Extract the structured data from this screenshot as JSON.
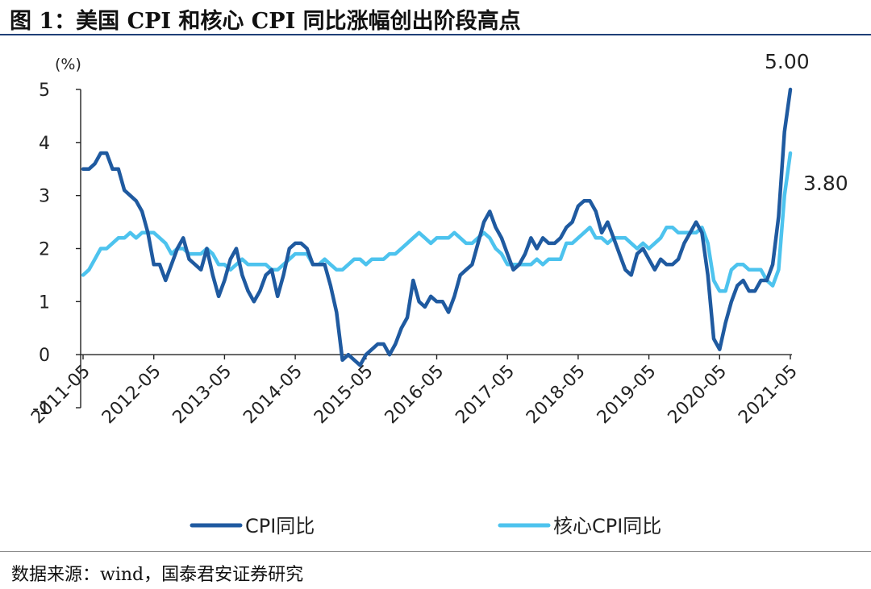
{
  "title": "图 1：美国 CPI 和核心 CPI 同比涨幅创出阶段高点",
  "source": "数据来源：wind，国泰君安证券研究",
  "chart_data": {
    "type": "line",
    "ylabel": "(%)",
    "ylim": [
      -1,
      5
    ],
    "yticks": [
      -1,
      0,
      1,
      2,
      3,
      4,
      5
    ],
    "ytick_labels": [
      "-1",
      "0",
      "1",
      "2",
      "3",
      "4",
      "5"
    ],
    "x_start": "2011-05",
    "x_end": "2021-05",
    "xtick_labels": [
      "2011-05",
      "2012-05",
      "2013-05",
      "2014-05",
      "2015-05",
      "2016-05",
      "2017-05",
      "2018-05",
      "2019-05",
      "2020-05",
      "2021-05"
    ],
    "legend_position": "bottom",
    "annotations": [
      {
        "text": "5.00",
        "series": "CPI同比",
        "date": "2021-05",
        "value": 5.0
      },
      {
        "text": "3.80",
        "series": "核心CPI同比",
        "date": "2021-05",
        "value": 3.8
      }
    ],
    "series": [
      {
        "name": "CPI同比",
        "color": "#1f5aa0",
        "points": [
          [
            "2011-05",
            3.5
          ],
          [
            "2011-06",
            3.5
          ],
          [
            "2011-07",
            3.6
          ],
          [
            "2011-08",
            3.8
          ],
          [
            "2011-09",
            3.8
          ],
          [
            "2011-10",
            3.5
          ],
          [
            "2011-11",
            3.5
          ],
          [
            "2011-12",
            3.1
          ],
          [
            "2012-01",
            3.0
          ],
          [
            "2012-02",
            2.9
          ],
          [
            "2012-03",
            2.7
          ],
          [
            "2012-04",
            2.3
          ],
          [
            "2012-05",
            1.7
          ],
          [
            "2012-06",
            1.7
          ],
          [
            "2012-07",
            1.4
          ],
          [
            "2012-08",
            1.7
          ],
          [
            "2012-09",
            2.0
          ],
          [
            "2012-10",
            2.2
          ],
          [
            "2012-11",
            1.8
          ],
          [
            "2012-12",
            1.7
          ],
          [
            "2013-01",
            1.6
          ],
          [
            "2013-02",
            2.0
          ],
          [
            "2013-03",
            1.5
          ],
          [
            "2013-04",
            1.1
          ],
          [
            "2013-05",
            1.4
          ],
          [
            "2013-06",
            1.8
          ],
          [
            "2013-07",
            2.0
          ],
          [
            "2013-08",
            1.5
          ],
          [
            "2013-09",
            1.2
          ],
          [
            "2013-10",
            1.0
          ],
          [
            "2013-11",
            1.2
          ],
          [
            "2013-12",
            1.5
          ],
          [
            "2014-01",
            1.6
          ],
          [
            "2014-02",
            1.1
          ],
          [
            "2014-03",
            1.5
          ],
          [
            "2014-04",
            2.0
          ],
          [
            "2014-05",
            2.1
          ],
          [
            "2014-06",
            2.1
          ],
          [
            "2014-07",
            2.0
          ],
          [
            "2014-08",
            1.7
          ],
          [
            "2014-09",
            1.7
          ],
          [
            "2014-10",
            1.7
          ],
          [
            "2014-11",
            1.3
          ],
          [
            "2014-12",
            0.8
          ],
          [
            "2015-01",
            -0.1
          ],
          [
            "2015-02",
            0.0
          ],
          [
            "2015-03",
            -0.1
          ],
          [
            "2015-04",
            -0.2
          ],
          [
            "2015-05",
            0.0
          ],
          [
            "2015-06",
            0.1
          ],
          [
            "2015-07",
            0.2
          ],
          [
            "2015-08",
            0.2
          ],
          [
            "2015-09",
            0.0
          ],
          [
            "2015-10",
            0.2
          ],
          [
            "2015-11",
            0.5
          ],
          [
            "2015-12",
            0.7
          ],
          [
            "2016-01",
            1.4
          ],
          [
            "2016-02",
            1.0
          ],
          [
            "2016-03",
            0.9
          ],
          [
            "2016-04",
            1.1
          ],
          [
            "2016-05",
            1.0
          ],
          [
            "2016-06",
            1.0
          ],
          [
            "2016-07",
            0.8
          ],
          [
            "2016-08",
            1.1
          ],
          [
            "2016-09",
            1.5
          ],
          [
            "2016-10",
            1.6
          ],
          [
            "2016-11",
            1.7
          ],
          [
            "2016-12",
            2.1
          ],
          [
            "2017-01",
            2.5
          ],
          [
            "2017-02",
            2.7
          ],
          [
            "2017-03",
            2.4
          ],
          [
            "2017-04",
            2.2
          ],
          [
            "2017-05",
            1.9
          ],
          [
            "2017-06",
            1.6
          ],
          [
            "2017-07",
            1.7
          ],
          [
            "2017-08",
            1.9
          ],
          [
            "2017-09",
            2.2
          ],
          [
            "2017-10",
            2.0
          ],
          [
            "2017-11",
            2.2
          ],
          [
            "2017-12",
            2.1
          ],
          [
            "2018-01",
            2.1
          ],
          [
            "2018-02",
            2.2
          ],
          [
            "2018-03",
            2.4
          ],
          [
            "2018-04",
            2.5
          ],
          [
            "2018-05",
            2.8
          ],
          [
            "2018-06",
            2.9
          ],
          [
            "2018-07",
            2.9
          ],
          [
            "2018-08",
            2.7
          ],
          [
            "2018-09",
            2.3
          ],
          [
            "2018-10",
            2.5
          ],
          [
            "2018-11",
            2.2
          ],
          [
            "2018-12",
            1.9
          ],
          [
            "2019-01",
            1.6
          ],
          [
            "2019-02",
            1.5
          ],
          [
            "2019-03",
            1.9
          ],
          [
            "2019-04",
            2.0
          ],
          [
            "2019-05",
            1.8
          ],
          [
            "2019-06",
            1.6
          ],
          [
            "2019-07",
            1.8
          ],
          [
            "2019-08",
            1.7
          ],
          [
            "2019-09",
            1.7
          ],
          [
            "2019-10",
            1.8
          ],
          [
            "2019-11",
            2.1
          ],
          [
            "2019-12",
            2.3
          ],
          [
            "2020-01",
            2.5
          ],
          [
            "2020-02",
            2.3
          ],
          [
            "2020-03",
            1.5
          ],
          [
            "2020-04",
            0.3
          ],
          [
            "2020-05",
            0.1
          ],
          [
            "2020-06",
            0.6
          ],
          [
            "2020-07",
            1.0
          ],
          [
            "2020-08",
            1.3
          ],
          [
            "2020-09",
            1.4
          ],
          [
            "2020-10",
            1.2
          ],
          [
            "2020-11",
            1.2
          ],
          [
            "2020-12",
            1.4
          ],
          [
            "2021-01",
            1.4
          ],
          [
            "2021-02",
            1.7
          ],
          [
            "2021-03",
            2.6
          ],
          [
            "2021-04",
            4.2
          ],
          [
            "2021-05",
            5.0
          ]
        ]
      },
      {
        "name": "核心CPI同比",
        "color": "#4dc3ee",
        "points": [
          [
            "2011-05",
            1.5
          ],
          [
            "2011-06",
            1.6
          ],
          [
            "2011-07",
            1.8
          ],
          [
            "2011-08",
            2.0
          ],
          [
            "2011-09",
            2.0
          ],
          [
            "2011-10",
            2.1
          ],
          [
            "2011-11",
            2.2
          ],
          [
            "2011-12",
            2.2
          ],
          [
            "2012-01",
            2.3
          ],
          [
            "2012-02",
            2.2
          ],
          [
            "2012-03",
            2.3
          ],
          [
            "2012-04",
            2.3
          ],
          [
            "2012-05",
            2.3
          ],
          [
            "2012-06",
            2.2
          ],
          [
            "2012-07",
            2.1
          ],
          [
            "2012-08",
            1.9
          ],
          [
            "2012-09",
            2.0
          ],
          [
            "2012-10",
            2.0
          ],
          [
            "2012-11",
            1.9
          ],
          [
            "2012-12",
            1.9
          ],
          [
            "2013-01",
            1.9
          ],
          [
            "2013-02",
            2.0
          ],
          [
            "2013-03",
            1.9
          ],
          [
            "2013-04",
            1.7
          ],
          [
            "2013-05",
            1.7
          ],
          [
            "2013-06",
            1.6
          ],
          [
            "2013-07",
            1.7
          ],
          [
            "2013-08",
            1.8
          ],
          [
            "2013-09",
            1.7
          ],
          [
            "2013-10",
            1.7
          ],
          [
            "2013-11",
            1.7
          ],
          [
            "2013-12",
            1.7
          ],
          [
            "2014-01",
            1.6
          ],
          [
            "2014-02",
            1.6
          ],
          [
            "2014-03",
            1.7
          ],
          [
            "2014-04",
            1.8
          ],
          [
            "2014-05",
            1.9
          ],
          [
            "2014-06",
            1.9
          ],
          [
            "2014-07",
            1.9
          ],
          [
            "2014-08",
            1.7
          ],
          [
            "2014-09",
            1.7
          ],
          [
            "2014-10",
            1.8
          ],
          [
            "2014-11",
            1.7
          ],
          [
            "2014-12",
            1.6
          ],
          [
            "2015-01",
            1.6
          ],
          [
            "2015-02",
            1.7
          ],
          [
            "2015-03",
            1.8
          ],
          [
            "2015-04",
            1.8
          ],
          [
            "2015-05",
            1.7
          ],
          [
            "2015-06",
            1.8
          ],
          [
            "2015-07",
            1.8
          ],
          [
            "2015-08",
            1.8
          ],
          [
            "2015-09",
            1.9
          ],
          [
            "2015-10",
            1.9
          ],
          [
            "2015-11",
            2.0
          ],
          [
            "2015-12",
            2.1
          ],
          [
            "2016-01",
            2.2
          ],
          [
            "2016-02",
            2.3
          ],
          [
            "2016-03",
            2.2
          ],
          [
            "2016-04",
            2.1
          ],
          [
            "2016-05",
            2.2
          ],
          [
            "2016-06",
            2.2
          ],
          [
            "2016-07",
            2.2
          ],
          [
            "2016-08",
            2.3
          ],
          [
            "2016-09",
            2.2
          ],
          [
            "2016-10",
            2.1
          ],
          [
            "2016-11",
            2.1
          ],
          [
            "2016-12",
            2.2
          ],
          [
            "2017-01",
            2.3
          ],
          [
            "2017-02",
            2.2
          ],
          [
            "2017-03",
            2.0
          ],
          [
            "2017-04",
            1.9
          ],
          [
            "2017-05",
            1.7
          ],
          [
            "2017-06",
            1.7
          ],
          [
            "2017-07",
            1.7
          ],
          [
            "2017-08",
            1.7
          ],
          [
            "2017-09",
            1.7
          ],
          [
            "2017-10",
            1.8
          ],
          [
            "2017-11",
            1.7
          ],
          [
            "2017-12",
            1.8
          ],
          [
            "2018-01",
            1.8
          ],
          [
            "2018-02",
            1.8
          ],
          [
            "2018-03",
            2.1
          ],
          [
            "2018-04",
            2.1
          ],
          [
            "2018-05",
            2.2
          ],
          [
            "2018-06",
            2.3
          ],
          [
            "2018-07",
            2.4
          ],
          [
            "2018-08",
            2.2
          ],
          [
            "2018-09",
            2.2
          ],
          [
            "2018-10",
            2.1
          ],
          [
            "2018-11",
            2.2
          ],
          [
            "2018-12",
            2.2
          ],
          [
            "2019-01",
            2.2
          ],
          [
            "2019-02",
            2.1
          ],
          [
            "2019-03",
            2.0
          ],
          [
            "2019-04",
            2.1
          ],
          [
            "2019-05",
            2.0
          ],
          [
            "2019-06",
            2.1
          ],
          [
            "2019-07",
            2.2
          ],
          [
            "2019-08",
            2.4
          ],
          [
            "2019-09",
            2.4
          ],
          [
            "2019-10",
            2.3
          ],
          [
            "2019-11",
            2.3
          ],
          [
            "2019-12",
            2.3
          ],
          [
            "2020-01",
            2.3
          ],
          [
            "2020-02",
            2.4
          ],
          [
            "2020-03",
            2.1
          ],
          [
            "2020-04",
            1.4
          ],
          [
            "2020-05",
            1.2
          ],
          [
            "2020-06",
            1.2
          ],
          [
            "2020-07",
            1.6
          ],
          [
            "2020-08",
            1.7
          ],
          [
            "2020-09",
            1.7
          ],
          [
            "2020-10",
            1.6
          ],
          [
            "2020-11",
            1.6
          ],
          [
            "2020-12",
            1.6
          ],
          [
            "2021-01",
            1.4
          ],
          [
            "2021-02",
            1.3
          ],
          [
            "2021-03",
            1.6
          ],
          [
            "2021-04",
            3.0
          ],
          [
            "2021-05",
            3.8
          ]
        ]
      }
    ]
  }
}
